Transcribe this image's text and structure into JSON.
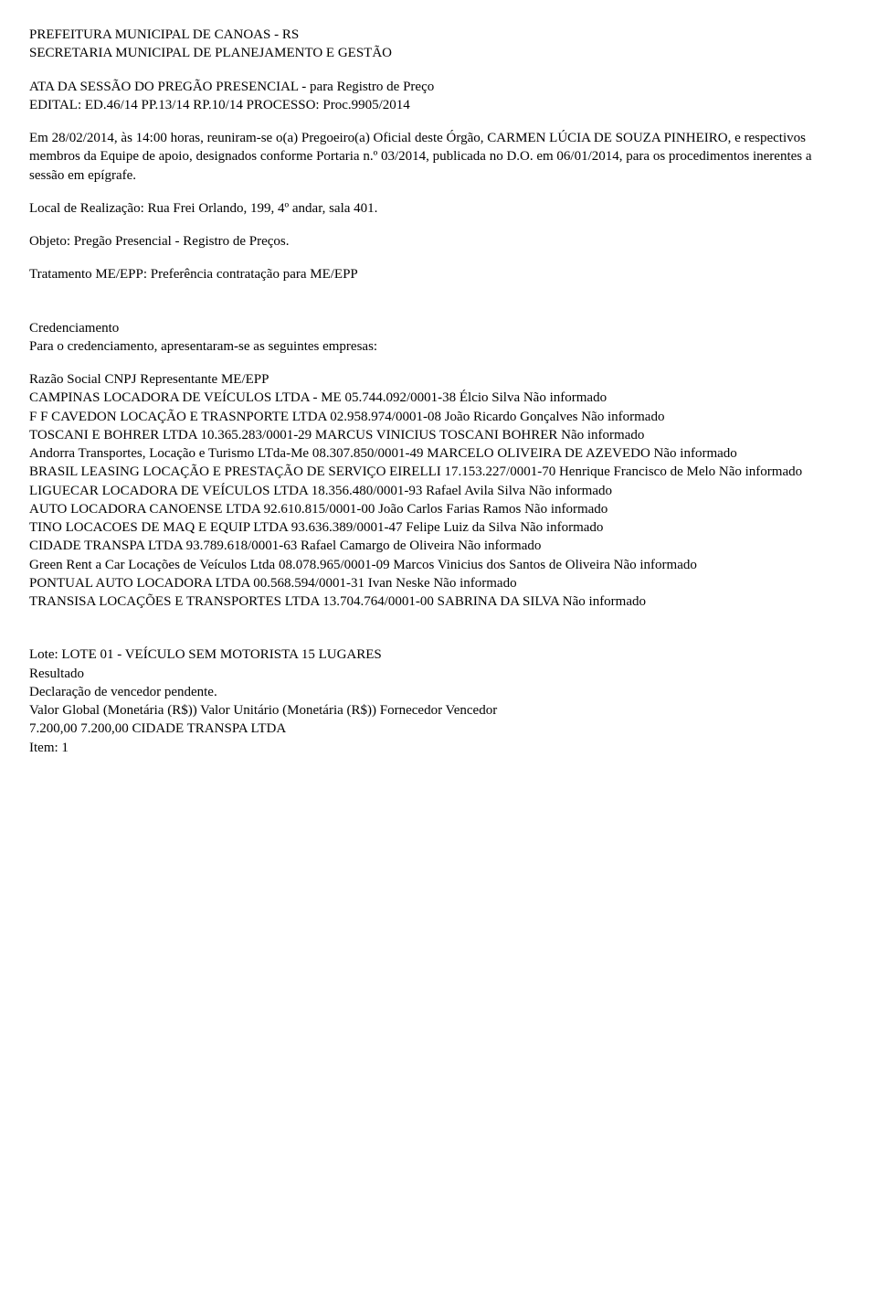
{
  "header": {
    "line1": "PREFEITURA MUNICIPAL DE CANOAS - RS",
    "line2": "SECRETARIA MUNICIPAL DE PLANEJAMENTO E GESTÃO"
  },
  "title": {
    "line1": "ATA DA SESSÃO DO PREGÃO PRESENCIAL - para Registro de Preço",
    "line2": "EDITAL: ED.46/14 PP.13/14 RP.10/14    PROCESSO: Proc.9905/2014"
  },
  "intro": "Em 28/02/2014, às 14:00 horas, reuniram-se o(a) Pregoeiro(a) Oficial deste Órgão, CARMEN LÚCIA DE SOUZA PINHEIRO, e respectivos membros da Equipe de apoio, designados conforme Portaria n.º 03/2014, publicada no D.O. em 06/01/2014, para os procedimentos inerentes a sessão em epígrafe.",
  "local": "Local de Realização: Rua Frei Orlando, 199, 4º andar, sala 401.",
  "objeto": "Objeto: Pregão Presencial - Registro de Preços.",
  "tratamento": "Tratamento ME/EPP: Preferência contratação para ME/EPP",
  "cred": {
    "title": "Credenciamento",
    "subtitle": "Para o credenciamento, apresentaram-se as seguintes empresas:",
    "header": "Razão Social   CNPJ   Representante ME/EPP",
    "rows": [
      "CAMPINAS LOCADORA DE VEÍCULOS LTDA - ME    05.744.092/0001-38   Élcio Silva        Não informado",
      "F F CAVEDON LOCAÇÃO E TRASNPORTE LTDA        02.958.974/0001-08   João Ricardo Gonçalves       Não informado",
      "TOSCANI E BOHRER LTDA          10.365.283/0001-29   MARCUS VINICIUS TOSCANI BOHRER       Não informado",
      "Andorra Transportes, Locação e Turismo LTda-Me 08.307.850/0001-49   MARCELO OLIVEIRA DE AZEVEDO          Não informado",
      "BRASIL LEASING LOCAÇÃO E PRESTAÇÃO DE SERVIÇO EIRELLI          17.153.227/0001-70       Henrique Francisco de Melo  Não informado",
      "LIGUECAR LOCADORA DE VEÍCULOS LTDA 18.356.480/0001-93   Rafael Avila Silva       Não informado",
      "AUTO LOCADORA CANOENSE LTDA   92.610.815/0001-00   João Carlos Farias Ramos      Não informado",
      "TINO LOCACOES DE MAQ E EQUIP LTDA        93.636.389/0001-47   Felipe Luiz da Silva   Não informado",
      "CIDADE TRANSPA LTDA  93.789.618/0001-63   Rafael Camargo de Oliveira   Não informado",
      "Green Rent a Car Locações de Veículos Ltda          08.078.965/0001-09   Marcos Vinicius dos Santos de Oliveira       Não informado",
      "PONTUAL AUTO LOCADORA LTDA       00.568.594/0001-31   Ivan Neske      Não informado",
      "TRANSISA LOCAÇÕES E TRANSPORTES LTDA          13.704.764/0001-00   SABRINA DA SILVA Não informado"
    ]
  },
  "lote": {
    "title": "Lote: LOTE 01 - VEÍCULO SEM MOTORISTA 15 LUGARES",
    "resultado": "Resultado",
    "decl": "Declaração de vencedor pendente.",
    "header": "Valor Global (Monetária (R$))          Valor Unitário (Monetária (R$))         Fornecedor Vencedor",
    "row": "7.200,00             7.200,00          CIDADE TRANSPA LTDA",
    "item": "Item: 1"
  }
}
